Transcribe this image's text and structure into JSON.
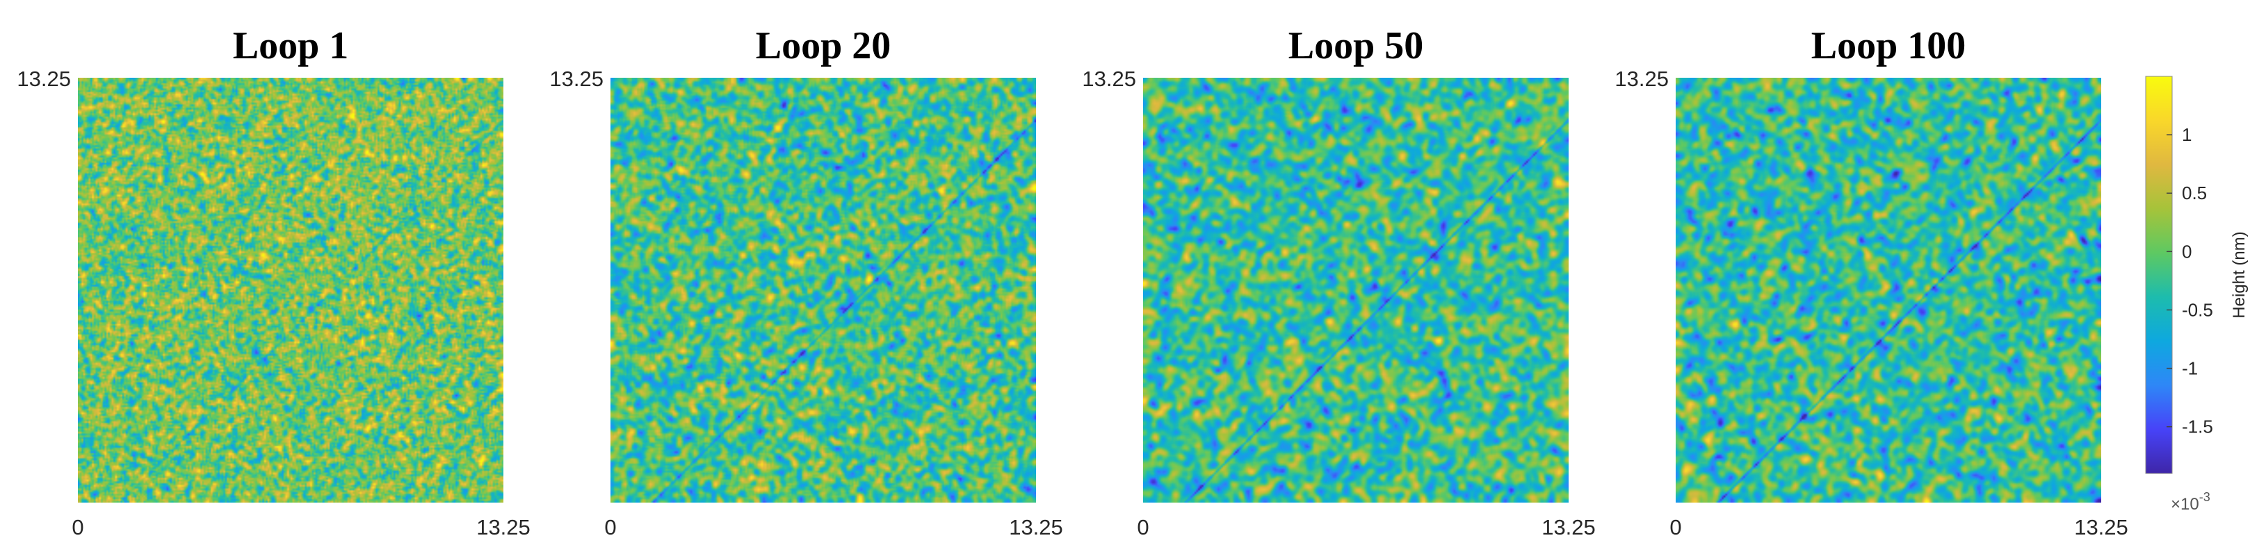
{
  "chart_data": {
    "type": "heatmap",
    "panels": [
      {
        "title": "Loop 1",
        "xlim": [
          0,
          13.25
        ],
        "ylim": [
          0,
          13.25
        ],
        "x_tick_labels": [
          "0",
          "13.25"
        ],
        "y_tick_labels": [
          "13.25"
        ],
        "noise_level": 0.1,
        "texture_scale": 1,
        "line_offset": 1.0,
        "line_strength": 0.35
      },
      {
        "title": "Loop 20",
        "xlim": [
          0,
          13.25
        ],
        "ylim": [
          0,
          13.25
        ],
        "x_tick_labels": [
          "0",
          "13.25"
        ],
        "y_tick_labels": [
          "13.25"
        ],
        "noise_level": -0.15,
        "texture_scale": 2,
        "line_offset": 1.0,
        "line_strength": 0.55
      },
      {
        "title": "Loop 50",
        "xlim": [
          0,
          13.25
        ],
        "ylim": [
          0,
          13.25
        ],
        "x_tick_labels": [
          "0",
          "13.25"
        ],
        "y_tick_labels": [
          "13.25"
        ],
        "noise_level": -0.25,
        "texture_scale": 3,
        "line_offset": 1.0,
        "line_strength": 0.7
      },
      {
        "title": "Loop 100",
        "xlim": [
          0,
          13.25
        ],
        "ylim": [
          0,
          13.25
        ],
        "x_tick_labels": [
          "0",
          "13.25"
        ],
        "y_tick_labels": [
          "13.25"
        ],
        "noise_level": -0.3,
        "texture_scale": 3,
        "line_offset": 1.0,
        "line_strength": 0.75
      }
    ],
    "colorbar": {
      "label": "Height (nm)",
      "exponent_label": "×10",
      "exponent_power": "-3",
      "ticks": [
        1,
        0.5,
        0,
        -0.5,
        -1,
        -1.5
      ],
      "tick_labels": [
        "1",
        "0.5",
        "0",
        "-0.5",
        "-1",
        "-1.5"
      ],
      "range": [
        -1.9,
        1.5
      ],
      "colormap": "parula",
      "colormap_stops": [
        "#3e26a8",
        "#4743f8",
        "#2e87f7",
        "#0ea8df",
        "#1dbcad",
        "#5ec962",
        "#a6c33a",
        "#e0b840",
        "#f9d72a",
        "#f9fb0e"
      ]
    }
  }
}
